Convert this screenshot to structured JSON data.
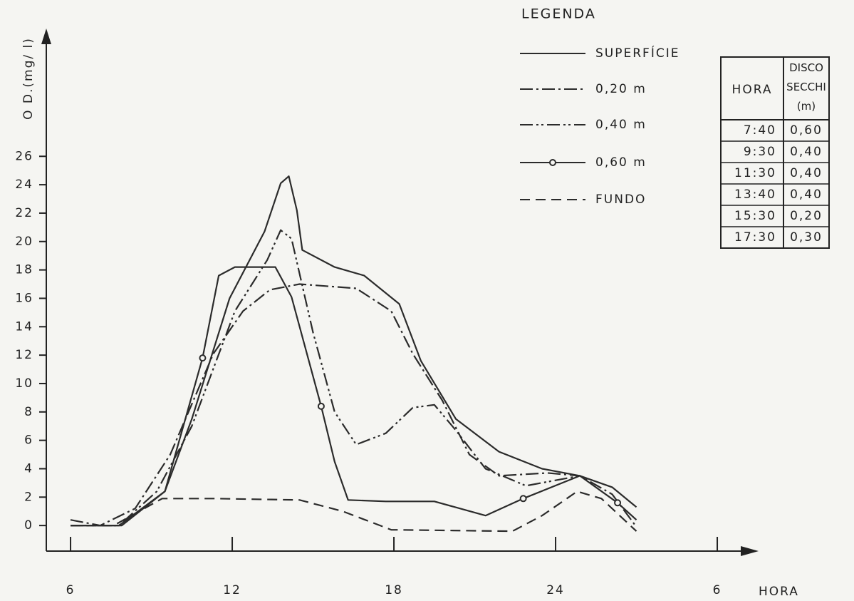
{
  "chart_data": {
    "type": "line",
    "ylabel": "O D.(mg/ l)",
    "xlabel": "HORA",
    "legend_title": "LEGENDA",
    "xlim": [
      5.1,
      31.4
    ],
    "ylim": [
      -1.8,
      35
    ],
    "xticks": [
      6,
      12,
      18,
      24,
      {
        "value": 30,
        "label": "6"
      }
    ],
    "yticks": [
      0,
      2,
      4,
      6,
      8,
      10,
      12,
      14,
      16,
      18,
      20,
      22,
      24,
      26
    ],
    "series": [
      {
        "name": "SUPERFÍCIE",
        "color": "#2b2b2b",
        "style": "solid",
        "x": [
          6.0,
          7.8,
          9.5,
          10.5,
          11.9,
          13.2,
          13.8,
          14.1,
          14.4,
          14.6,
          15.8,
          16.9,
          18.2,
          19.0,
          20.3,
          21.9,
          23.5,
          24.9,
          26.1,
          27.0
        ],
        "values": [
          0,
          0,
          2.4,
          7.5,
          16,
          20.7,
          24.1,
          24.6,
          22.2,
          19.4,
          18.2,
          17.6,
          15.6,
          11.6,
          7.5,
          5.2,
          4.0,
          3.5,
          2.7,
          1.3
        ]
      },
      {
        "name": "0,20 m",
        "color": "#2b2b2b",
        "style": "dashdot",
        "x": [
          6.0,
          7.1,
          8.4,
          9.7,
          11.3,
          12.4,
          13.4,
          14.5,
          16.6,
          17.9,
          18.7,
          19.8,
          20.8,
          21.9,
          23.7,
          24.9,
          26.1,
          27.0
        ],
        "values": [
          0.4,
          0,
          1.2,
          5.0,
          12.1,
          15.1,
          16.6,
          17.0,
          16.7,
          15.1,
          12.1,
          8.8,
          5.0,
          3.5,
          3.7,
          3.5,
          2.2,
          -0.1
        ]
      },
      {
        "name": "0,40 m",
        "color": "#2b2b2b",
        "style": "dashdotdot",
        "x": [
          6.0,
          7.8,
          9.2,
          10.5,
          12.1,
          13.3,
          13.8,
          14.2,
          15.0,
          15.8,
          16.6,
          17.7,
          18.7,
          19.5,
          20.3,
          21.4,
          22.9,
          24.9
        ],
        "values": [
          0,
          0,
          2.4,
          7.0,
          15.1,
          18.7,
          20.8,
          20.2,
          13.6,
          8.0,
          5.7,
          6.5,
          8.3,
          8.5,
          6.7,
          4.0,
          2.8,
          3.5
        ]
      },
      {
        "name": "0,60 m",
        "color": "#2b2b2b",
        "style": "circles",
        "x": [
          6.0,
          7.9,
          9.5,
          10.9,
          11.5,
          12.1,
          13.6,
          14.2,
          15.3,
          15.8,
          16.3,
          17.7,
          19.5,
          21.4,
          22.8,
          24.9,
          26.3,
          27.0
        ],
        "values": [
          0,
          0,
          2.4,
          11.8,
          17.6,
          18.2,
          18.2,
          16.1,
          8.4,
          4.5,
          1.8,
          1.7,
          1.7,
          0.7,
          1.9,
          3.5,
          1.6,
          0.4
        ]
      },
      {
        "name": "FUNDO",
        "color": "#2b2b2b",
        "style": "dashed",
        "x": [
          6.0,
          7.6,
          9.4,
          11.3,
          14.5,
          16.1,
          17.9,
          22.4,
          23.5,
          24.8,
          25.7,
          27.0
        ],
        "values": [
          0,
          0,
          1.9,
          1.9,
          1.8,
          1.0,
          -0.3,
          -0.4,
          0.7,
          2.4,
          1.9,
          -0.4
        ]
      }
    ]
  },
  "table": {
    "header": [
      "HORA",
      "DISCO SECCHI (m)"
    ],
    "rows": [
      [
        "7:40",
        "0,60"
      ],
      [
        "9:30",
        "0,40"
      ],
      [
        "11:30",
        "0,40"
      ],
      [
        "13:40",
        "0,40"
      ],
      [
        "15:30",
        "0,20"
      ],
      [
        "17:30",
        "0,30"
      ]
    ]
  }
}
